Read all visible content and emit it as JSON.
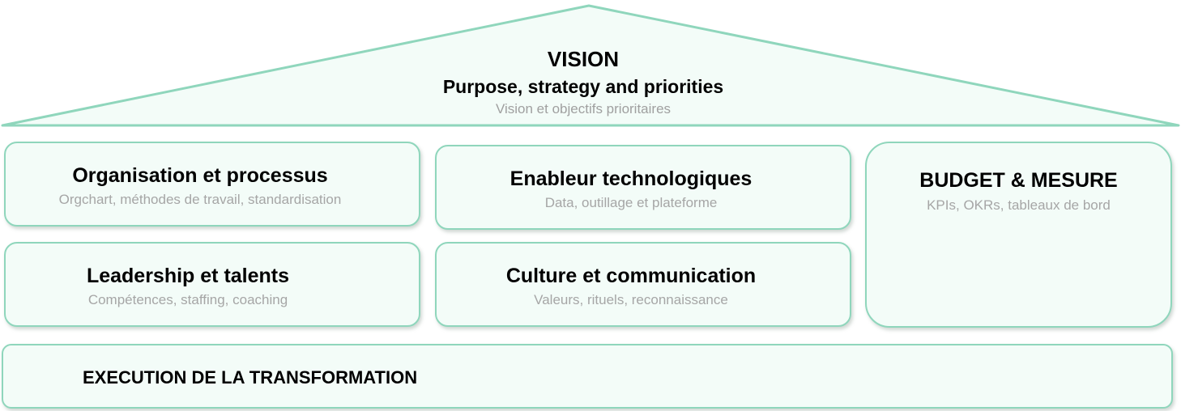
{
  "roof": {
    "title": "VISION",
    "subtitle": "Purpose, strategy and priorities",
    "description": "Vision et objectifs prioritaires"
  },
  "pillars": {
    "organisation": {
      "title": "Organisation et processus",
      "description": "Orgchart, méthodes de travail, standardisation"
    },
    "technology": {
      "title": "Enableur technologiques",
      "description": "Data, outillage et plateforme"
    },
    "leadership": {
      "title": "Leadership et talents",
      "description": "Compétences, staffing, coaching"
    },
    "culture": {
      "title": "Culture et communication",
      "description": "Valeurs, rituels, reconnaissance"
    },
    "budget": {
      "title": "BUDGET & MESURE",
      "description": "KPIs, OKRs, tableaux de bord"
    }
  },
  "foundation": {
    "title": "EXECUTION DE LA TRANSFORMATION"
  },
  "colors": {
    "border": "#8fd6bc",
    "fill": "#f3fcf8",
    "title_text": "#000000",
    "description_text": "#a6a6a6"
  }
}
